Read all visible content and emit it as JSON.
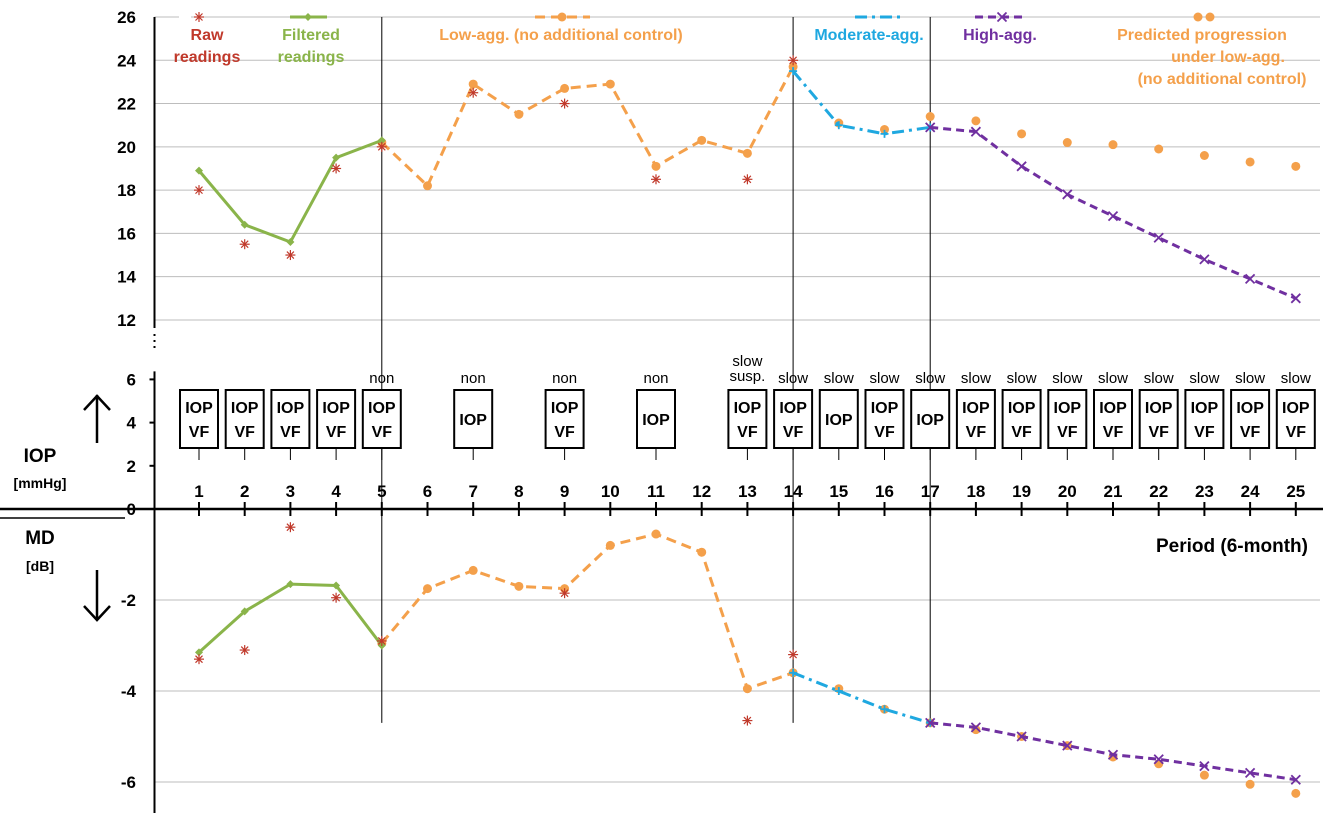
{
  "chart_data": {
    "type": "line",
    "x_label": "Period (6-month)",
    "periods": [
      1,
      2,
      3,
      4,
      5,
      6,
      7,
      8,
      9,
      10,
      11,
      12,
      13,
      14,
      15,
      16,
      17,
      18,
      19,
      20,
      21,
      22,
      23,
      24,
      25
    ],
    "iop_axis": {
      "name": "IOP",
      "unit": "[mmHg]",
      "range": [
        12,
        26
      ],
      "ticks": [
        "12",
        "14",
        "16",
        "18",
        "20",
        "22",
        "24",
        "26"
      ]
    },
    "status_axis": {
      "ticks": [
        "0",
        "2",
        "4",
        "6"
      ]
    },
    "md_axis": {
      "name": "MD",
      "unit": "[dB]",
      "range": [
        -6.5,
        0
      ],
      "ticks": [
        "-2",
        "-4",
        "-6"
      ]
    },
    "colors": {
      "raw": "#c0392b",
      "filtered": "#8ab44a",
      "low": "#f4a04b",
      "moderate": "#1fa8e0",
      "high": "#7030a0",
      "predicted": "#f4a04b"
    },
    "legend": {
      "raw": "Raw readings",
      "filtered": "Filtered readings",
      "low": "Low-agg. (no additional control)",
      "moderate": "Moderate-agg.",
      "high": "High-agg.",
      "predicted": "Predicted progression under low-agg. (no additional control)"
    },
    "iop": {
      "raw": [
        [
          1,
          18
        ],
        [
          2,
          15.5
        ],
        [
          3,
          15
        ],
        [
          4,
          19
        ],
        [
          5,
          20
        ],
        [
          7,
          22.5
        ],
        [
          9,
          22
        ],
        [
          11,
          18.5
        ],
        [
          13,
          18.5
        ],
        [
          14,
          24
        ]
      ],
      "filtered": [
        [
          1,
          18.9
        ],
        [
          2,
          16.4
        ],
        [
          3,
          15.6
        ],
        [
          4,
          19.5
        ],
        [
          5,
          20.3
        ]
      ],
      "low": [
        [
          5,
          20.2
        ],
        [
          6,
          18.2
        ],
        [
          7,
          22.9
        ],
        [
          8,
          21.5
        ],
        [
          9,
          22.7
        ],
        [
          10,
          22.9
        ],
        [
          11,
          19.1
        ],
        [
          12,
          20.3
        ],
        [
          13,
          19.7
        ],
        [
          14,
          23.7
        ]
      ],
      "moderate": [
        [
          14,
          23.5
        ],
        [
          15,
          21
        ],
        [
          16,
          20.6
        ],
        [
          17,
          20.9
        ]
      ],
      "high": [
        [
          17,
          20.9
        ],
        [
          18,
          20.7
        ],
        [
          19,
          19.1
        ],
        [
          20,
          17.8
        ],
        [
          21,
          16.8
        ],
        [
          22,
          15.8
        ],
        [
          23,
          14.8
        ],
        [
          24,
          13.9
        ],
        [
          25,
          13
        ]
      ],
      "predicted": [
        [
          15,
          21.1
        ],
        [
          16,
          20.8
        ],
        [
          17,
          21.4
        ],
        [
          18,
          21.2
        ],
        [
          19,
          20.6
        ],
        [
          20,
          20.2
        ],
        [
          21,
          20.1
        ],
        [
          22,
          19.9
        ],
        [
          23,
          19.6
        ],
        [
          24,
          19.3
        ],
        [
          25,
          19.1
        ]
      ]
    },
    "md": {
      "raw": [
        [
          1,
          -3.3
        ],
        [
          2,
          -3.1
        ],
        [
          3,
          -0.4
        ],
        [
          4,
          -1.95
        ],
        [
          5,
          -2.9
        ],
        [
          9,
          -1.85
        ],
        [
          13,
          -4.65
        ],
        [
          14,
          -3.2
        ]
      ],
      "filtered": [
        [
          1,
          -3.15
        ],
        [
          2,
          -2.25
        ],
        [
          3,
          -1.65
        ],
        [
          4,
          -1.68
        ],
        [
          5,
          -3.0
        ]
      ],
      "low": [
        [
          5,
          -2.95
        ],
        [
          6,
          -1.75
        ],
        [
          7,
          -1.35
        ],
        [
          8,
          -1.7
        ],
        [
          9,
          -1.75
        ],
        [
          10,
          -0.8
        ],
        [
          11,
          -0.55
        ],
        [
          12,
          -0.95
        ],
        [
          13,
          -3.95
        ],
        [
          14,
          -3.6
        ]
      ],
      "moderate": [
        [
          14,
          -3.6
        ],
        [
          15,
          -4.0
        ],
        [
          16,
          -4.4
        ],
        [
          17,
          -4.7
        ]
      ],
      "high": [
        [
          17,
          -4.7
        ],
        [
          18,
          -4.8
        ],
        [
          19,
          -5.0
        ],
        [
          20,
          -5.2
        ],
        [
          21,
          -5.4
        ],
        [
          22,
          -5.5
        ],
        [
          23,
          -5.65
        ],
        [
          24,
          -5.8
        ],
        [
          25,
          -5.95
        ]
      ],
      "predicted": [
        [
          15,
          -3.95
        ],
        [
          16,
          -4.4
        ],
        [
          17,
          -4.7
        ],
        [
          18,
          -4.85
        ],
        [
          19,
          -5.0
        ],
        [
          20,
          -5.2
        ],
        [
          21,
          -5.45
        ],
        [
          22,
          -5.6
        ],
        [
          23,
          -5.85
        ],
        [
          24,
          -6.05
        ],
        [
          25,
          -6.25
        ]
      ]
    },
    "tests": [
      {
        "p": 1,
        "status": "",
        "box": [
          "IOP",
          "VF"
        ]
      },
      {
        "p": 2,
        "status": "",
        "box": [
          "IOP",
          "VF"
        ]
      },
      {
        "p": 3,
        "status": "",
        "box": [
          "IOP",
          "VF"
        ]
      },
      {
        "p": 4,
        "status": "",
        "box": [
          "IOP",
          "VF"
        ]
      },
      {
        "p": 5,
        "status": "non",
        "box": [
          "IOP",
          "VF"
        ]
      },
      {
        "p": 7,
        "status": "non",
        "box": [
          "IOP"
        ]
      },
      {
        "p": 9,
        "status": "non",
        "box": [
          "IOP",
          "VF"
        ]
      },
      {
        "p": 11,
        "status": "non",
        "box": [
          "IOP"
        ]
      },
      {
        "p": 13,
        "status": "slow\nsusp.",
        "box": [
          "IOP",
          "VF"
        ]
      },
      {
        "p": 14,
        "status": "slow",
        "box": [
          "IOP",
          "VF"
        ]
      },
      {
        "p": 15,
        "status": "slow",
        "box": [
          "IOP"
        ]
      },
      {
        "p": 16,
        "status": "slow",
        "box": [
          "IOP",
          "VF"
        ]
      },
      {
        "p": 17,
        "status": "slow",
        "box": [
          "IOP"
        ]
      },
      {
        "p": 18,
        "status": "slow",
        "box": [
          "IOP",
          "VF"
        ]
      },
      {
        "p": 19,
        "status": "slow",
        "box": [
          "IOP",
          "VF"
        ]
      },
      {
        "p": 20,
        "status": "slow",
        "box": [
          "IOP",
          "VF"
        ]
      },
      {
        "p": 21,
        "status": "slow",
        "box": [
          "IOP",
          "VF"
        ]
      },
      {
        "p": 22,
        "status": "slow",
        "box": [
          "IOP",
          "VF"
        ]
      },
      {
        "p": 23,
        "status": "slow",
        "box": [
          "IOP",
          "VF"
        ]
      },
      {
        "p": 24,
        "status": "slow",
        "box": [
          "IOP",
          "VF"
        ]
      },
      {
        "p": 25,
        "status": "slow",
        "box": [
          "IOP",
          "VF"
        ]
      }
    ],
    "divider_periods": [
      5,
      14,
      17
    ]
  }
}
